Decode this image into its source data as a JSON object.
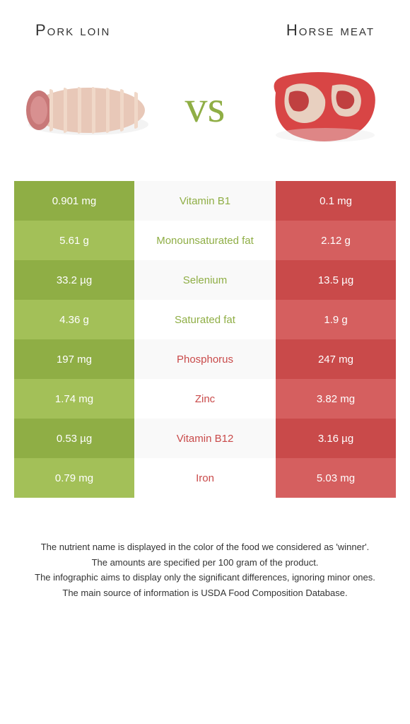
{
  "titles": {
    "left": "Pork loin",
    "right": "Horse meat"
  },
  "vs_label": "vs",
  "colors": {
    "left_dark": "#8fae45",
    "left_light": "#a3c058",
    "right_dark": "#c94a4a",
    "right_light": "#d55f5f",
    "mid_left_text": "#8fae45",
    "mid_right_text": "#c94a4a"
  },
  "rows": [
    {
      "left": "0.901 mg",
      "mid": "Vitamin B1",
      "right": "0.1 mg",
      "winner": "left"
    },
    {
      "left": "5.61 g",
      "mid": "Monounsaturated fat",
      "right": "2.12 g",
      "winner": "left"
    },
    {
      "left": "33.2 µg",
      "mid": "Selenium",
      "right": "13.5 µg",
      "winner": "left"
    },
    {
      "left": "4.36 g",
      "mid": "Saturated fat",
      "right": "1.9 g",
      "winner": "left"
    },
    {
      "left": "197 mg",
      "mid": "Phosphorus",
      "right": "247 mg",
      "winner": "right"
    },
    {
      "left": "1.74 mg",
      "mid": "Zinc",
      "right": "3.82 mg",
      "winner": "right"
    },
    {
      "left": "0.53 µg",
      "mid": "Vitamin B12",
      "right": "3.16 µg",
      "winner": "right"
    },
    {
      "left": "0.79 mg",
      "mid": "Iron",
      "right": "5.03 mg",
      "winner": "right"
    }
  ],
  "footer": [
    "The nutrient name is displayed in the color of the food we considered as 'winner'.",
    "The amounts are specified per 100 gram of the product.",
    "The infographic aims to display only the significant differences, ignoring minor ones.",
    "The main source of information is USDA Food Composition Database."
  ]
}
